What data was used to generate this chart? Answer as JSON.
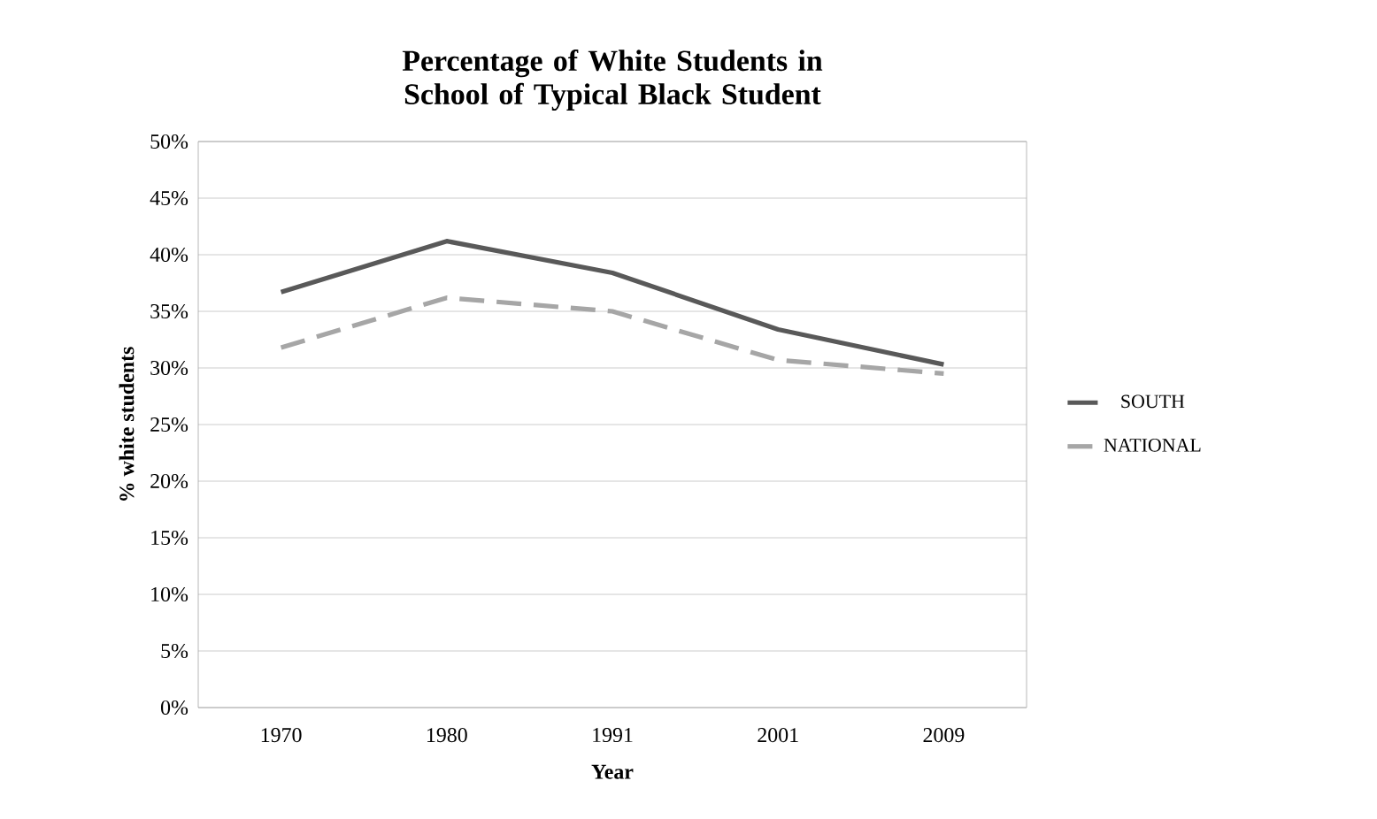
{
  "chart_data": {
    "type": "line",
    "title": "Percentage of White Students in School of Typical Black Student",
    "xlabel": "Year",
    "ylabel": "% white students",
    "categories": [
      "1970",
      "1980",
      "1991",
      "2001",
      "2009"
    ],
    "series": [
      {
        "name": "SOUTH",
        "color": "#595959",
        "line_style": "solid",
        "values": [
          36.7,
          41.2,
          38.4,
          33.4,
          30.3
        ]
      },
      {
        "name": "NATIONAL",
        "color": "#a6a6a6",
        "line_style": "dashed",
        "values": [
          31.8,
          36.2,
          35.0,
          30.7,
          29.5
        ]
      }
    ],
    "ylim": [
      0,
      50
    ],
    "yticks": [
      {
        "value": 0,
        "label": "0%"
      },
      {
        "value": 5,
        "label": "5%"
      },
      {
        "value": 10,
        "label": "10%"
      },
      {
        "value": 15,
        "label": "15%"
      },
      {
        "value": 20,
        "label": "20%"
      },
      {
        "value": 25,
        "label": "25%"
      },
      {
        "value": 30,
        "label": "30%"
      },
      {
        "value": 35,
        "label": "35%"
      },
      {
        "value": 40,
        "label": "40%"
      },
      {
        "value": 45,
        "label": "45%"
      },
      {
        "value": 50,
        "label": "50%"
      }
    ],
    "grid": "y",
    "legend": "right",
    "marker": "none"
  }
}
